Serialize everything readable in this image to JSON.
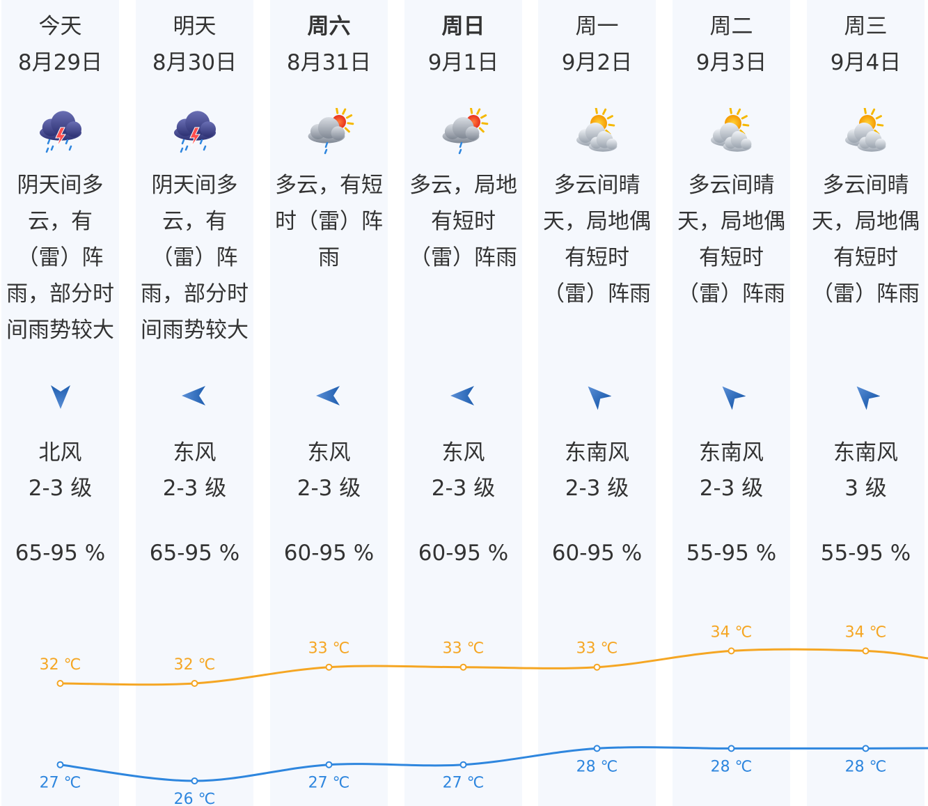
{
  "days": [
    {
      "day": "今天",
      "date": "8月29日",
      "bold": false,
      "icon": "thunderstorm-icon",
      "desc": [
        "阴天间多",
        "云，有",
        "（雷）阵",
        "雨，部分时",
        "间雨势较大"
      ],
      "arrow_deg": 180,
      "wind_dir": "北风",
      "wind_level": "2-3 级",
      "humidity": "65-95 %",
      "high": 32,
      "low": 27,
      "high_label": "32 ℃",
      "low_label": "27 ℃"
    },
    {
      "day": "明天",
      "date": "8月30日",
      "bold": false,
      "icon": "thunderstorm-icon",
      "desc": [
        "阴天间多",
        "云，有",
        "（雷）阵",
        "雨，部分时",
        "间雨势较大"
      ],
      "arrow_deg": 270,
      "wind_dir": "东风",
      "wind_level": "2-3 级",
      "humidity": "65-95 %",
      "high": 32,
      "low": 26,
      "high_label": "32 ℃",
      "low_label": "26 ℃"
    },
    {
      "day": "周六",
      "date": "8月31日",
      "bold": true,
      "icon": "partly-cloudy-shower-icon",
      "desc": [
        "多云，有短",
        "时（雷）阵",
        "雨"
      ],
      "arrow_deg": 270,
      "wind_dir": "东风",
      "wind_level": "2-3 级",
      "humidity": "60-95 %",
      "high": 33,
      "low": 27,
      "high_label": "33 ℃",
      "low_label": "27 ℃"
    },
    {
      "day": "周日",
      "date": "9月1日",
      "bold": true,
      "icon": "partly-cloudy-shower-icon",
      "desc": [
        "多云，局地",
        "有短时",
        "（雷）阵雨"
      ],
      "arrow_deg": 270,
      "wind_dir": "东风",
      "wind_level": "2-3 级",
      "humidity": "60-95 %",
      "high": 33,
      "low": 27,
      "high_label": "33 ℃",
      "low_label": "27 ℃"
    },
    {
      "day": "周一",
      "date": "9月2日",
      "bold": false,
      "icon": "partly-sunny-icon",
      "desc": [
        "多云间晴",
        "天，局地偶",
        "有短时",
        "（雷）阵雨"
      ],
      "arrow_deg": 315,
      "wind_dir": "东南风",
      "wind_level": "2-3 级",
      "humidity": "60-95 %",
      "high": 33,
      "low": 28,
      "high_label": "33 ℃",
      "low_label": "28 ℃"
    },
    {
      "day": "周二",
      "date": "9月3日",
      "bold": false,
      "icon": "partly-sunny-icon",
      "desc": [
        "多云间晴",
        "天，局地偶",
        "有短时",
        "（雷）阵雨"
      ],
      "arrow_deg": 315,
      "wind_dir": "东南风",
      "wind_level": "2-3 级",
      "humidity": "55-95 %",
      "high": 34,
      "low": 28,
      "high_label": "34 ℃",
      "low_label": "28 ℃"
    },
    {
      "day": "周三",
      "date": "9月4日",
      "bold": false,
      "icon": "partly-sunny-icon",
      "desc": [
        "多云间晴",
        "天，局地偶",
        "有短时",
        "（雷）阵雨"
      ],
      "arrow_deg": 315,
      "wind_dir": "东南风",
      "wind_level": "3 级",
      "humidity": "55-95 %",
      "high": 34,
      "low": 28,
      "high_label": "34 ℃",
      "low_label": "28 ℃"
    }
  ],
  "colors": {
    "high": "#f5a623",
    "low": "#2e86de",
    "column_bg": "#f5f8fd"
  }
}
